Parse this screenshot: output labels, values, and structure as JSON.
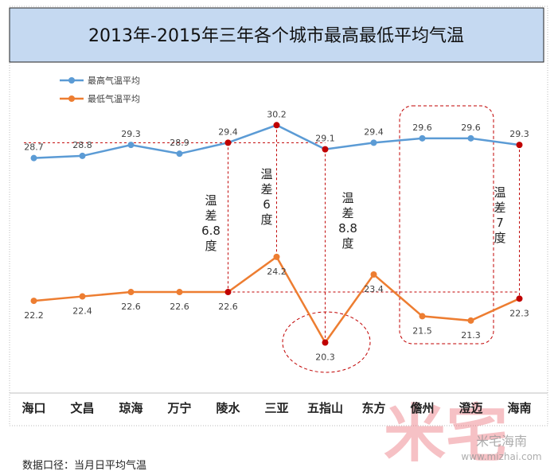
{
  "chart_data": {
    "type": "line",
    "title": "2013年-2015年三年各个城市最高最低平均气温",
    "categories": [
      "海口",
      "文昌",
      "琼海",
      "万宁",
      "陵水",
      "三亚",
      "五指山",
      "东方",
      "儋州",
      "澄迈",
      "海南"
    ],
    "series": [
      {
        "name": "最高气温平均",
        "color": "#5b9bd5",
        "values": [
          28.7,
          28.8,
          29.3,
          28.9,
          29.4,
          30.2,
          29.1,
          29.4,
          29.6,
          29.6,
          29.3
        ],
        "marker_colors": [
          "#5b9bd5",
          "#5b9bd5",
          "#5b9bd5",
          "#5b9bd5",
          "#c00000",
          "#c00000",
          "#c00000",
          "#5b9bd5",
          "#5b9bd5",
          "#5b9bd5",
          "#c00000"
        ]
      },
      {
        "name": "最低气温平均",
        "color": "#ed7d31",
        "values": [
          22.2,
          22.4,
          22.6,
          22.6,
          22.6,
          24.2,
          20.3,
          23.4,
          21.5,
          21.3,
          22.3
        ],
        "marker_colors": [
          "#ed7d31",
          "#ed7d31",
          "#ed7d31",
          "#ed7d31",
          "#c00000",
          "#ed7d31",
          "#c00000",
          "#ed7d31",
          "#ed7d31",
          "#ed7d31",
          "#c00000"
        ]
      }
    ],
    "ylim": [
      18,
      33
    ],
    "annotations": [
      "温差6.8度",
      "温差6度",
      "温差8.8度",
      "温差7度"
    ],
    "footnote": "数据口径：当月日平均气温",
    "watermark": {
      "logo": "米宅",
      "name": "米宅海南",
      "url": "www.mizhai.com"
    }
  }
}
